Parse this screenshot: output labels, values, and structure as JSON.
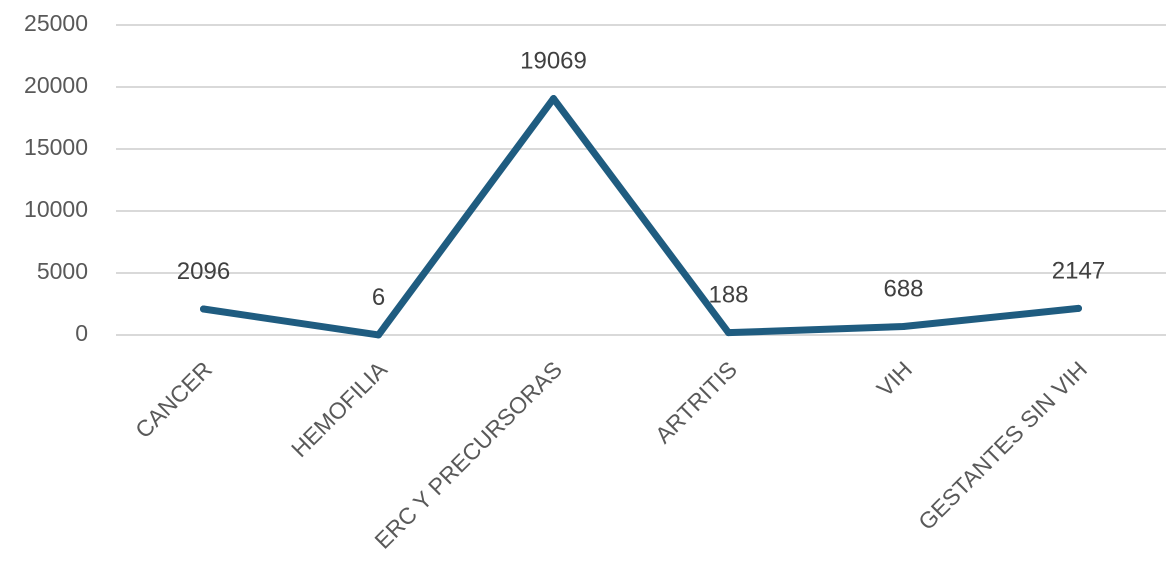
{
  "chart_data": {
    "type": "line",
    "title": "",
    "xlabel": "",
    "ylabel": "",
    "categories": [
      "CANCER",
      "HEMOFILIA",
      "ERC Y PRECURSORAS",
      "ARTRITIS",
      "VIH",
      "GESTANTES SIN VIH"
    ],
    "series": [
      {
        "values": [
          2096,
          6,
          19069,
          188,
          688,
          2147
        ],
        "color": "#1f5c80"
      }
    ],
    "ylim": [
      0,
      25000
    ],
    "yticks": [
      0,
      5000,
      10000,
      15000,
      20000,
      25000
    ],
    "grid": true,
    "legend": "none",
    "data_labels": true
  }
}
